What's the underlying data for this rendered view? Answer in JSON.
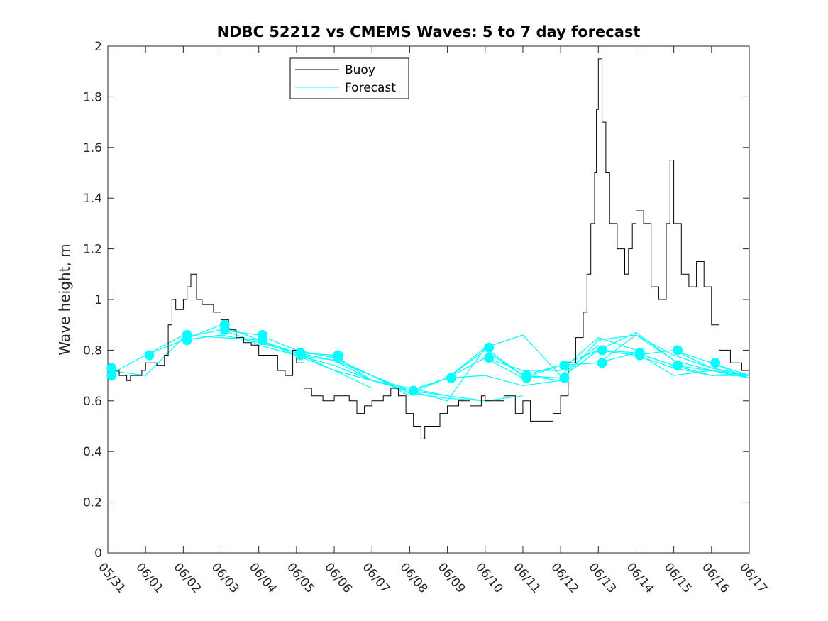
{
  "chart_data": {
    "type": "line",
    "title": "NDBC 52212 vs CMEMS Waves: 5 to 7 day forecast",
    "xlabel": "",
    "ylabel": "Wave height, m",
    "xlim": [
      "05/31",
      "06/17"
    ],
    "ylim": [
      0,
      2
    ],
    "x_ticks": [
      "05/31",
      "06/01",
      "06/02",
      "06/03",
      "06/04",
      "06/05",
      "06/06",
      "06/07",
      "06/08",
      "06/09",
      "06/10",
      "06/11",
      "06/12",
      "06/13",
      "06/14",
      "06/15",
      "06/16",
      "06/17"
    ],
    "y_ticks": [
      "0",
      "0.2",
      "0.4",
      "0.6",
      "0.8",
      "1",
      "1.2",
      "1.4",
      "1.6",
      "1.8",
      "2"
    ],
    "grid": false,
    "legend_position": "top-left",
    "colors": {
      "buoy": "#000000",
      "forecast": "#00ffff"
    },
    "legend": [
      {
        "label": "Buoy",
        "color": "#000000"
      },
      {
        "label": "Forecast",
        "color": "#00ffff"
      }
    ],
    "buoy": {
      "name": "Buoy",
      "x_days": [
        0,
        0.3,
        0.5,
        0.6,
        0.9,
        1.0,
        1.3,
        1.5,
        1.6,
        1.7,
        1.8,
        2.0,
        2.1,
        2.2,
        2.35,
        2.5,
        2.8,
        3.0,
        3.2,
        3.4,
        3.6,
        3.8,
        4.0,
        4.2,
        4.5,
        4.7,
        4.9,
        5.0,
        5.2,
        5.4,
        5.7,
        6.0,
        6.2,
        6.4,
        6.6,
        6.8,
        7.0,
        7.3,
        7.5,
        7.7,
        7.9,
        8.1,
        8.3,
        8.4,
        8.6,
        8.8,
        9.0,
        9.3,
        9.6,
        9.9,
        10.0,
        10.2,
        10.5,
        10.8,
        11.0,
        11.2,
        11.5,
        11.8,
        12.0,
        12.2,
        12.4,
        12.6,
        12.7,
        12.8,
        12.9,
        12.95,
        13.0,
        13.1,
        13.2,
        13.3,
        13.5,
        13.7,
        13.8,
        13.9,
        14.0,
        14.2,
        14.4,
        14.6,
        14.8,
        14.9,
        15.0,
        15.2,
        15.4,
        15.6,
        15.8,
        16.0,
        16.2,
        16.5,
        16.8,
        17.0
      ],
      "values": [
        0.72,
        0.7,
        0.68,
        0.7,
        0.72,
        0.75,
        0.74,
        0.78,
        0.9,
        1.0,
        0.96,
        1.0,
        1.05,
        1.1,
        1.0,
        0.98,
        0.95,
        0.92,
        0.88,
        0.85,
        0.83,
        0.82,
        0.78,
        0.78,
        0.72,
        0.7,
        0.8,
        0.75,
        0.65,
        0.62,
        0.6,
        0.62,
        0.62,
        0.6,
        0.55,
        0.58,
        0.6,
        0.62,
        0.65,
        0.62,
        0.55,
        0.5,
        0.45,
        0.5,
        0.5,
        0.55,
        0.58,
        0.6,
        0.58,
        0.62,
        0.6,
        0.6,
        0.62,
        0.55,
        0.6,
        0.52,
        0.52,
        0.55,
        0.62,
        0.75,
        0.85,
        0.95,
        1.1,
        1.3,
        1.5,
        1.75,
        1.95,
        1.7,
        1.5,
        1.3,
        1.2,
        1.1,
        1.2,
        1.3,
        1.35,
        1.3,
        1.05,
        1.0,
        1.3,
        1.55,
        1.3,
        1.1,
        1.05,
        1.15,
        1.05,
        0.9,
        0.8,
        0.75,
        0.72,
        0.7
      ]
    },
    "forecast": {
      "name": "Forecast",
      "runs": [
        {
          "x_days": [
            0,
            1,
            2,
            3,
            3.6,
            4,
            5,
            6,
            7
          ],
          "values": [
            0.72,
            0.7,
            0.85,
            0.88,
            0.85,
            0.82,
            0.78,
            0.72,
            0.65
          ]
        },
        {
          "x_days": [
            0,
            1,
            2,
            3,
            4,
            5,
            6,
            7,
            8
          ],
          "values": [
            0.7,
            0.78,
            0.84,
            0.86,
            0.83,
            0.79,
            0.76,
            0.7,
            0.62
          ]
        },
        {
          "x_days": [
            1,
            2,
            3,
            4,
            5,
            6,
            7,
            8,
            9
          ],
          "values": [
            0.78,
            0.86,
            0.85,
            0.84,
            0.79,
            0.72,
            0.68,
            0.65,
            0.62
          ]
        },
        {
          "x_days": [
            2,
            3,
            4,
            5,
            6,
            7,
            8,
            9,
            10
          ],
          "values": [
            0.84,
            0.9,
            0.84,
            0.78,
            0.74,
            0.68,
            0.64,
            0.62,
            0.6
          ]
        },
        {
          "x_days": [
            3,
            4,
            5,
            6,
            7,
            8,
            9,
            10,
            11
          ],
          "values": [
            0.88,
            0.86,
            0.8,
            0.77,
            0.7,
            0.63,
            0.61,
            0.6,
            0.62
          ]
        },
        {
          "x_days": [
            4,
            5,
            6,
            7,
            8,
            9,
            10,
            11,
            12
          ],
          "values": [
            0.84,
            0.78,
            0.76,
            0.68,
            0.64,
            0.69,
            0.7,
            0.66,
            0.68
          ]
        },
        {
          "x_days": [
            5,
            6,
            7,
            8,
            9,
            10,
            11,
            12,
            13
          ],
          "values": [
            0.79,
            0.78,
            0.68,
            0.64,
            0.6,
            0.81,
            0.86,
            0.7,
            0.82
          ]
        },
        {
          "x_days": [
            6,
            7,
            8,
            9,
            10,
            11,
            12,
            13,
            14
          ],
          "values": [
            0.77,
            0.7,
            0.63,
            0.69,
            0.77,
            0.72,
            0.72,
            0.85,
            0.8
          ]
        },
        {
          "x_days": [
            7,
            8,
            9,
            10,
            11,
            12,
            13,
            14,
            15
          ],
          "values": [
            0.7,
            0.64,
            0.69,
            0.8,
            0.7,
            0.68,
            0.84,
            0.86,
            0.76
          ]
        },
        {
          "x_days": [
            8,
            9,
            10,
            11,
            12,
            13,
            14,
            15,
            16
          ],
          "values": [
            0.64,
            0.69,
            0.81,
            0.7,
            0.69,
            0.8,
            0.87,
            0.76,
            0.72
          ]
        },
        {
          "x_days": [
            9,
            10,
            11,
            12,
            13,
            14,
            15,
            16,
            17
          ],
          "values": [
            0.69,
            0.77,
            0.69,
            0.74,
            0.75,
            0.86,
            0.78,
            0.73,
            0.7
          ]
        },
        {
          "x_days": [
            10,
            11,
            12,
            13,
            14,
            15,
            16,
            17
          ],
          "values": [
            0.8,
            0.7,
            0.74,
            0.8,
            0.78,
            0.8,
            0.75,
            0.69
          ]
        },
        {
          "x_days": [
            11,
            12,
            13,
            14,
            15,
            16,
            17
          ],
          "values": [
            0.7,
            0.69,
            0.8,
            0.79,
            0.74,
            0.72,
            0.7
          ]
        },
        {
          "x_days": [
            12,
            13,
            14,
            15,
            16,
            17
          ],
          "values": [
            0.74,
            0.75,
            0.79,
            0.7,
            0.72,
            0.69
          ]
        },
        {
          "x_days": [
            13,
            14,
            15,
            16,
            17
          ],
          "values": [
            0.8,
            0.78,
            0.73,
            0.7,
            0.7
          ]
        },
        {
          "x_days": [
            14,
            15,
            16,
            17
          ],
          "values": [
            0.79,
            0.74,
            0.7,
            0.71
          ]
        },
        {
          "x_days": [
            15,
            16,
            17
          ],
          "values": [
            0.8,
            0.73,
            0.69
          ]
        },
        {
          "x_days": [
            16,
            17
          ],
          "values": [
            0.75,
            0.7
          ]
        }
      ],
      "markers": {
        "x_days": [
          0.1,
          0.1,
          1.1,
          2.1,
          2.1,
          3.1,
          3.1,
          4.1,
          4.1,
          5.1,
          5.1,
          6.1,
          6.1,
          8.1,
          9.1,
          10.1,
          10.1,
          11.1,
          11.1,
          12.1,
          12.1,
          13.1,
          13.1,
          14.1,
          14.1,
          15.1,
          15.1,
          16.1
        ],
        "values": [
          0.73,
          0.7,
          0.78,
          0.86,
          0.84,
          0.9,
          0.88,
          0.86,
          0.84,
          0.79,
          0.78,
          0.78,
          0.77,
          0.64,
          0.69,
          0.81,
          0.77,
          0.7,
          0.69,
          0.74,
          0.69,
          0.8,
          0.75,
          0.79,
          0.78,
          0.8,
          0.74,
          0.75
        ]
      }
    }
  }
}
